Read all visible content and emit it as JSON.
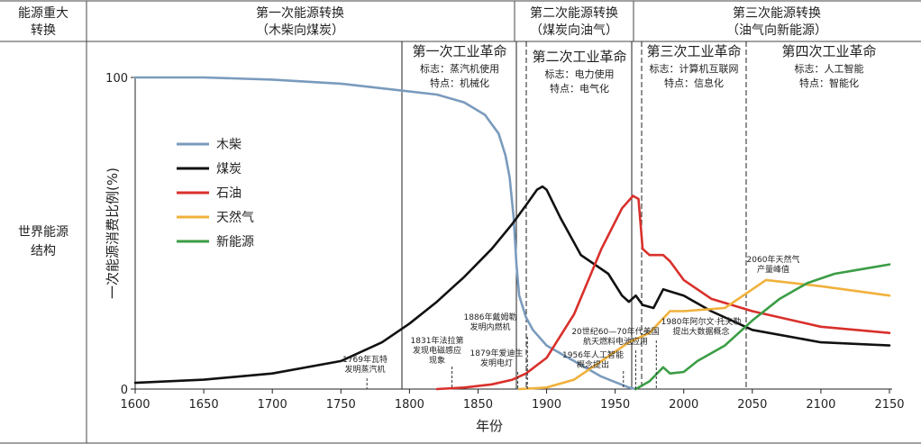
{
  "header": {
    "corner_label_line1": "能源重大",
    "corner_label_line2": "转换",
    "row_label_line1": "世界能源",
    "row_label_line2": "结构",
    "transitions": [
      {
        "line1": "第一次能源转换",
        "line2": "（木柴向煤炭）"
      },
      {
        "line1": "第二次能源转换",
        "line2": "（煤炭向油气）"
      },
      {
        "line1": "第三次能源转换",
        "line2": "（油气向新能源）"
      }
    ]
  },
  "revolutions": [
    {
      "title": "第一次工业革命",
      "sign": "标志：蒸汽机使用",
      "feature": "特点：机械化"
    },
    {
      "title": "第二次工业革命",
      "sign": "标志：电力使用",
      "feature": "特点：电气化"
    },
    {
      "title": "第三次工业革命",
      "sign": "标志：计算机互联网",
      "feature": "特点：信息化"
    },
    {
      "title": "第四次工业革命",
      "sign": "标志：人工智能",
      "feature": "特点：智能化"
    }
  ],
  "annotations": [
    {
      "year": 1769,
      "line1": "1769年瓦特",
      "line2": "发明蒸汽机"
    },
    {
      "year": 1831,
      "line1": "1831年法拉第",
      "line2": "发现电磁感应",
      "line3": "现象"
    },
    {
      "year": 1879,
      "line1": "1879年爱迪生",
      "line2": "发明电灯"
    },
    {
      "year": 1886,
      "line1": "1886年戴姆勒",
      "line2": "发明内燃机"
    },
    {
      "year": 1956,
      "line1": "1956年人工智能",
      "line2": "概念提出"
    },
    {
      "year": 1965,
      "line1": "20世纪60—70年代美国",
      "line2": "航天燃料电池应用"
    },
    {
      "year": 1980,
      "line1": "1980年阿尔文·托夫勒",
      "line2": "提出大数据概念"
    },
    {
      "year": 2060,
      "line1": "2060年天然气",
      "line2": "产量峰值"
    }
  ],
  "chart_data": {
    "type": "line",
    "xlabel": "年份",
    "ylabel": "一次能源消费比例(%)",
    "xlim": [
      1600,
      2150
    ],
    "ylim": [
      0,
      100
    ],
    "xticks": [
      1600,
      1650,
      1700,
      1750,
      1800,
      1850,
      1900,
      1950,
      2000,
      2050,
      2100,
      2150
    ],
    "yticks": [
      0,
      100
    ],
    "legend_position": "upper-left",
    "series": [
      {
        "name": "木柴",
        "color": "#7a9bbd",
        "x": [
          1600,
          1650,
          1700,
          1750,
          1790,
          1820,
          1840,
          1855,
          1865,
          1870,
          1873,
          1876,
          1878,
          1880,
          1885,
          1890,
          1900,
          1920,
          1940,
          1960,
          1965
        ],
        "y": [
          100,
          100,
          99.3,
          98,
          96,
          94.5,
          92,
          88,
          82,
          75,
          68,
          55,
          40,
          30,
          23,
          19,
          14,
          9,
          4,
          0.5,
          0
        ]
      },
      {
        "name": "煤炭",
        "color": "#111111",
        "x": [
          1600,
          1650,
          1700,
          1750,
          1780,
          1800,
          1820,
          1840,
          1860,
          1875,
          1885,
          1893,
          1897,
          1900,
          1910,
          1925,
          1945,
          1955,
          1960,
          1965,
          1970,
          1978,
          1985,
          2000,
          2020,
          2050,
          2100,
          2150
        ],
        "y": [
          2,
          3,
          5,
          9,
          15,
          21,
          28,
          36,
          45,
          53,
          59,
          64,
          65,
          64,
          55,
          43,
          37,
          30,
          28,
          30,
          27,
          26,
          32,
          30,
          25,
          19,
          15,
          14
        ]
      },
      {
        "name": "石油",
        "color": "#d9302b",
        "x": [
          1820,
          1840,
          1860,
          1875,
          1885,
          1900,
          1920,
          1940,
          1955,
          1963,
          1967,
          1970,
          1975,
          1985,
          1990,
          2000,
          2020,
          2050,
          2100,
          2150
        ],
        "y": [
          0,
          0.5,
          1.5,
          3,
          5,
          10,
          24,
          45,
          58,
          62,
          61,
          45,
          43,
          43,
          41,
          35,
          29,
          25,
          20,
          18
        ]
      },
      {
        "name": "天然气",
        "color": "#f0b13c",
        "x": [
          1880,
          1900,
          1920,
          1940,
          1960,
          1975,
          1990,
          2000,
          2030,
          2050,
          2060,
          2100,
          2150
        ],
        "y": [
          0,
          0.5,
          3,
          9,
          15,
          18,
          25,
          25,
          26,
          32,
          35,
          33,
          30
        ]
      },
      {
        "name": "新能源",
        "color": "#3b9d45",
        "x": [
          1965,
          1975,
          1985,
          1990,
          2000,
          2010,
          2030,
          2050,
          2070,
          2090,
          2110,
          2130,
          2150
        ],
        "y": [
          0,
          2.5,
          7,
          5,
          5.5,
          9,
          14,
          22,
          29,
          34,
          37,
          38.5,
          40
        ]
      }
    ]
  }
}
